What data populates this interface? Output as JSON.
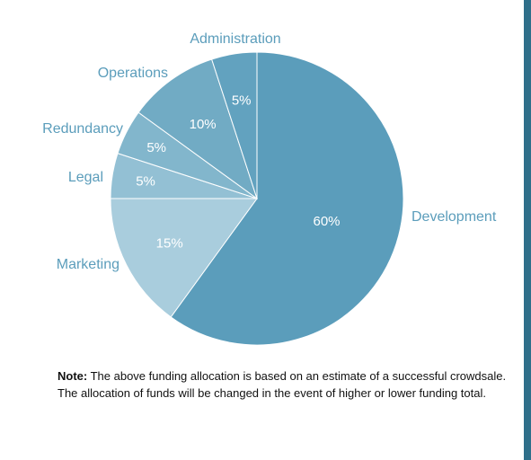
{
  "colors": {
    "accent_bar": "#2f6f8a",
    "label_text": "#5b9dbb",
    "slice_border": "#ffffff"
  },
  "chart_data": {
    "type": "pie",
    "title": "",
    "start_angle_deg": 0,
    "direction": "clockwise",
    "slices": [
      {
        "name": "Development",
        "value": 60,
        "pct_label": "60%",
        "color": "#5b9dbb"
      },
      {
        "name": "Marketing",
        "value": 15,
        "pct_label": "15%",
        "color": "#a9cddd"
      },
      {
        "name": "Legal",
        "value": 5,
        "pct_label": "5%",
        "color": "#93c0d4"
      },
      {
        "name": "Redundancy",
        "value": 5,
        "pct_label": "5%",
        "color": "#82b6cc"
      },
      {
        "name": "Operations",
        "value": 10,
        "pct_label": "10%",
        "color": "#71abc4"
      },
      {
        "name": "Administration",
        "value": 5,
        "pct_label": "5%",
        "color": "#62a2bf"
      }
    ]
  },
  "note": {
    "bold": "Note:",
    "text": " The above funding allocation is based on an estimate of a successful crowdsale. The allocation of funds will be changed in the event of higher or lower funding total."
  }
}
